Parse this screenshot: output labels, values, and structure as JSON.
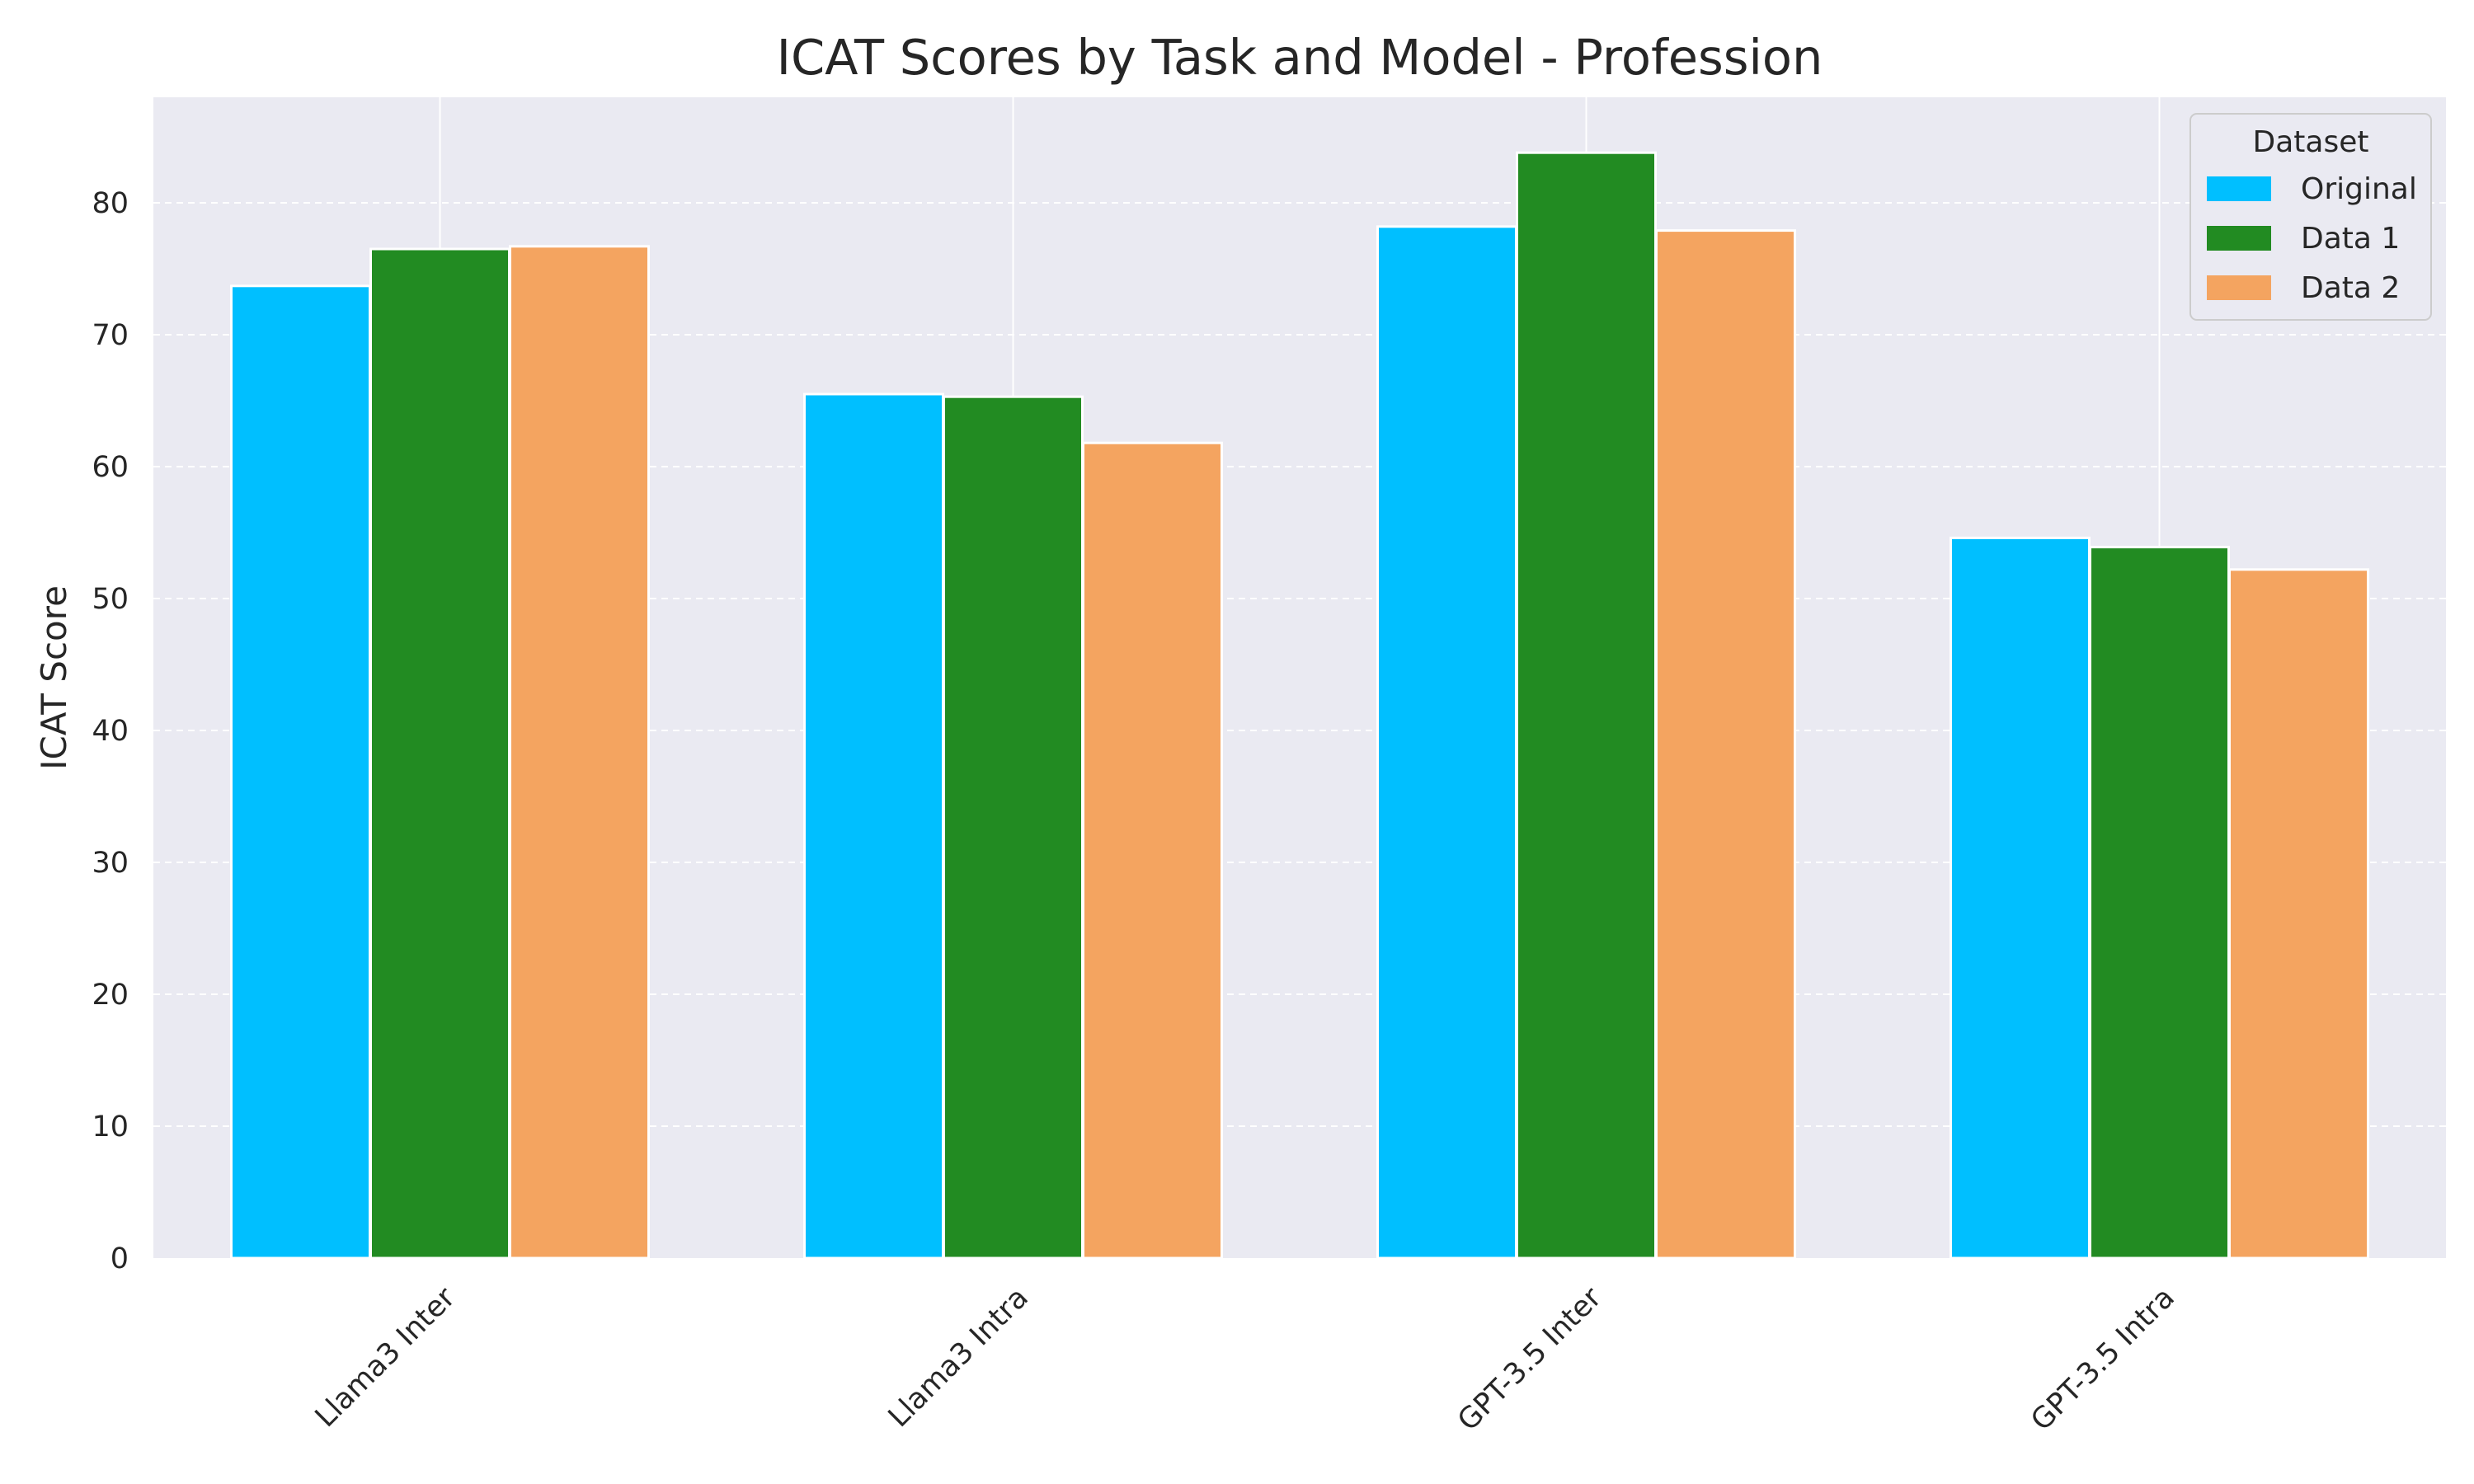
{
  "chart_data": {
    "type": "bar",
    "title": "ICAT Scores by Task and Model - Profession",
    "xlabel": "",
    "ylabel": "ICAT Score",
    "categories": [
      "Llama3 Inter",
      "Llama3 Intra",
      "GPT-3.5 Inter",
      "GPT-3.5 Intra"
    ],
    "series": [
      {
        "name": "Original",
        "color": "#00BFFF",
        "values": [
          73.7,
          65.5,
          78.2,
          54.6
        ]
      },
      {
        "name": "Data 1",
        "color": "#228B22",
        "values": [
          76.5,
          65.3,
          83.8,
          53.9
        ]
      },
      {
        "name": "Data 2",
        "color": "#F4A460",
        "values": [
          76.7,
          61.8,
          77.9,
          52.2
        ]
      }
    ],
    "ylim": [
      0,
      88
    ],
    "yticks": [
      "0",
      "10",
      "20",
      "30",
      "40",
      "50",
      "60",
      "70",
      "80"
    ],
    "legend": {
      "title": "Dataset",
      "position": "top-right"
    },
    "grid": true,
    "background": "#EAEAF2"
  }
}
